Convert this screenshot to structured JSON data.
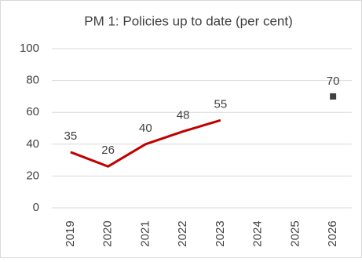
{
  "chart_data": {
    "type": "line",
    "title": "PM 1: Policies up to date (per cent)",
    "categories": [
      "2019",
      "2020",
      "2021",
      "2022",
      "2023",
      "2024",
      "2025",
      "2026"
    ],
    "series": [
      {
        "color": "#c00000",
        "values": [
          35,
          26,
          40,
          48,
          55,
          null,
          null,
          null
        ]
      },
      {
        "color": "#404040",
        "marker": "square",
        "values": [
          null,
          null,
          null,
          null,
          null,
          null,
          null,
          70
        ]
      }
    ],
    "ylim": [
      0,
      100
    ],
    "yticks": [
      0,
      20,
      40,
      60,
      80,
      100
    ],
    "grid": true
  }
}
